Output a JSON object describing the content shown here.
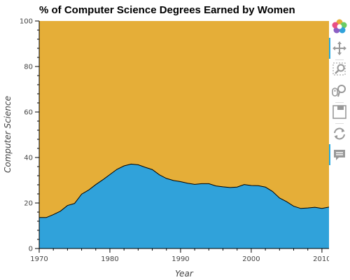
{
  "chart_data": {
    "type": "area",
    "title": "% of Computer Science Degrees Earned by Women",
    "xlabel": "Year",
    "ylabel": "Computer Science",
    "xlim": [
      1970,
      2011
    ],
    "ylim": [
      0,
      100
    ],
    "x_ticks": [
      1970,
      1980,
      1990,
      2000,
      2010
    ],
    "y_ticks": [
      0,
      20,
      40,
      60,
      80,
      100
    ],
    "grid": false,
    "legend": "none",
    "colors": {
      "women": "#30a2da",
      "remainder": "#e5ae38",
      "outline": "#000000"
    },
    "series": [
      {
        "role": "women",
        "x": [
          1970,
          1971,
          1972,
          1973,
          1974,
          1975,
          1976,
          1977,
          1978,
          1979,
          1980,
          1981,
          1982,
          1983,
          1984,
          1985,
          1986,
          1987,
          1988,
          1989,
          1990,
          1991,
          1992,
          1993,
          1994,
          1995,
          1996,
          1997,
          1998,
          1999,
          2000,
          2001,
          2002,
          2003,
          2004,
          2005,
          2006,
          2007,
          2008,
          2009,
          2010,
          2011
        ],
        "values": [
          13.6,
          13.6,
          14.9,
          16.4,
          18.9,
          19.8,
          23.9,
          25.7,
          28.1,
          30.2,
          32.5,
          34.8,
          36.3,
          37.1,
          36.8,
          35.7,
          34.7,
          32.4,
          30.8,
          29.9,
          29.4,
          28.7,
          28.2,
          28.5,
          28.5,
          27.5,
          27.1,
          26.8,
          27.0,
          28.1,
          27.7,
          27.6,
          27.0,
          25.1,
          22.2,
          20.6,
          18.6,
          17.6,
          17.8,
          18.1,
          17.6,
          18.2
        ]
      },
      {
        "role": "remainder",
        "top": 100
      }
    ]
  },
  "toolbar": {
    "tools": [
      {
        "icon": "bokeh-logo-icon",
        "active": false
      },
      {
        "icon": "pan-icon",
        "active": true
      },
      {
        "icon": "box-zoom-icon",
        "active": false
      },
      {
        "icon": "wheel-zoom-icon",
        "active": false
      },
      {
        "icon": "save-icon",
        "active": false
      },
      {
        "icon": "reset-icon",
        "active": false
      },
      {
        "icon": "hover-icon",
        "active": true
      }
    ]
  }
}
